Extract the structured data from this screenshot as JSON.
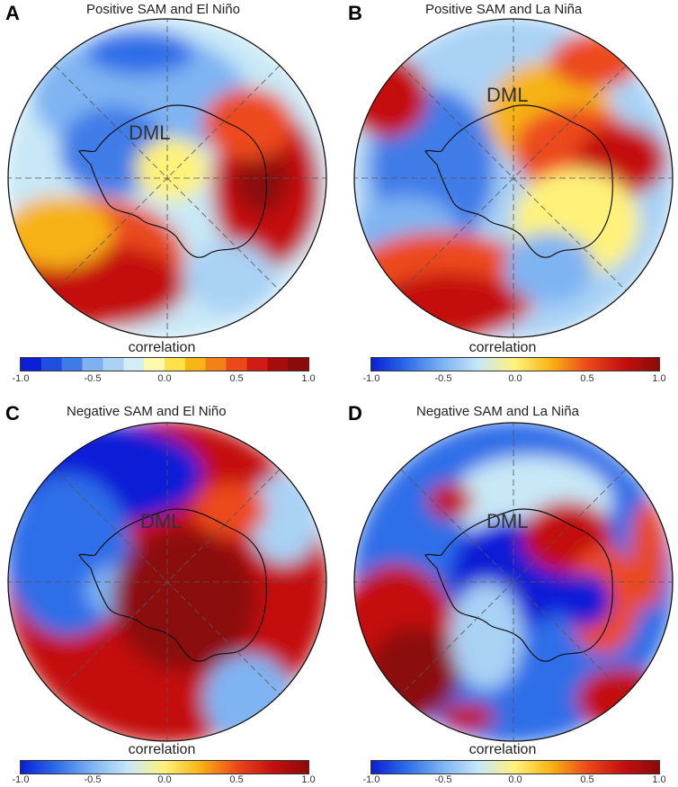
{
  "panels": [
    {
      "letter": "A",
      "title": "Positive SAM and El Niño",
      "region_label": "DML",
      "colorbar_label": "correlation",
      "ticks": [
        "-1.0",
        "-0.5",
        "0.0",
        "0.5",
        "1.0"
      ],
      "dominant": "warm-mixed"
    },
    {
      "letter": "B",
      "title": "Positive SAM and La Niña",
      "region_label": "DML",
      "colorbar_label": "correlation",
      "ticks": [
        "-1.0",
        "-0.5",
        "0.0",
        "0.5",
        "1.0"
      ],
      "dominant": "mixed"
    },
    {
      "letter": "C",
      "title": "Negative SAM and El Niño",
      "region_label": "DML",
      "colorbar_label": "correlation",
      "ticks": [
        "-1.0",
        "-0.5",
        "0.0",
        "0.5",
        "1.0"
      ],
      "dominant": "warm"
    },
    {
      "letter": "D",
      "title": "Negative SAM and La Niña",
      "region_label": "DML",
      "colorbar_label": "correlation",
      "ticks": [
        "-1.0",
        "-0.5",
        "0.0",
        "0.5",
        "1.0"
      ],
      "dominant": "cool-mixed"
    }
  ],
  "colorscale": {
    "min": -1.0,
    "max": 1.0,
    "colors": [
      "#0a1fd6",
      "#2f6ee8",
      "#7fb4f2",
      "#c8e8f7",
      "#fff27a",
      "#f7b313",
      "#ec4a1a",
      "#c41010",
      "#8c0a0a"
    ]
  }
}
